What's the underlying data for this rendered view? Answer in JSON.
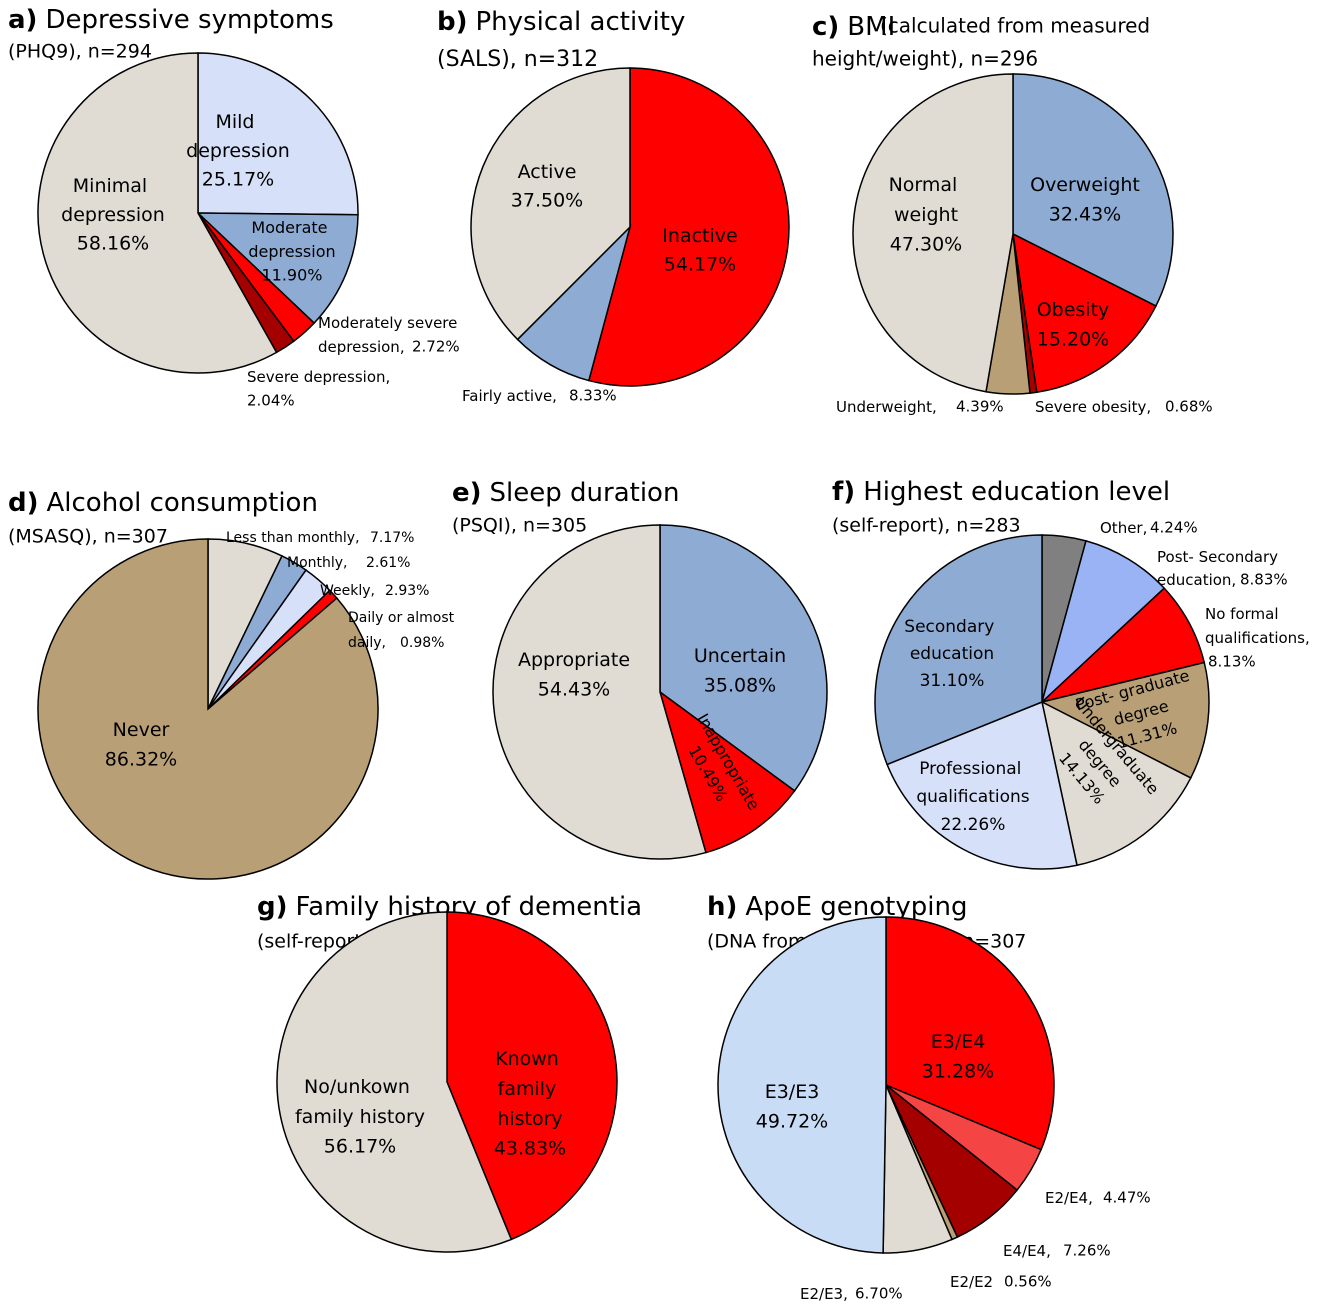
{
  "chart_data": [
    {
      "type": "pie",
      "panel": "a)",
      "title": "Depressive symptoms",
      "subtitle": "(PHQ9), n=294",
      "categories": [
        "Mild depression",
        "Moderate depression",
        "Moderately severe depression,",
        "Severe depression,",
        "Minimal depression"
      ],
      "values": [
        25.17,
        11.9,
        2.72,
        2.04,
        58.16
      ],
      "value_labels": [
        "25.17%",
        "11.90%",
        "2.72%",
        "2.04%",
        "58.16%"
      ],
      "colors": [
        "#d6e0f8",
        "#8eabd4",
        "#ff0000",
        "#a50000",
        "#e0dcd3"
      ]
    },
    {
      "type": "pie",
      "panel": "b)",
      "title": "Physical activity",
      "subtitle": "(SALS), n=312",
      "categories": [
        "Inactive",
        "Fairly active,",
        "Active"
      ],
      "values": [
        54.17,
        8.33,
        37.5
      ],
      "value_labels": [
        "54.17%",
        "8.33%",
        "37.50%"
      ],
      "colors": [
        "#ff0000",
        "#8eabd4",
        "#e0dcd3"
      ]
    },
    {
      "type": "pie",
      "panel": "c)",
      "title": "BMI",
      "note": "(calculated from measured",
      "subtitle": "height/weight), n=296",
      "categories": [
        "Overweight",
        "Obesity",
        "Severe obesity,",
        "Underweight,",
        "Normal weight"
      ],
      "values": [
        32.43,
        15.2,
        0.68,
        4.39,
        47.3
      ],
      "value_labels": [
        "32.43%",
        "15.20%",
        "0.68%",
        "4.39%",
        "47.30%"
      ],
      "colors": [
        "#8eabd4",
        "#ff0000",
        "#a50000",
        "#b89f75",
        "#e0dcd3"
      ]
    },
    {
      "type": "pie",
      "panel": "d)",
      "title": "Alcohol consumption",
      "subtitle": "(MSASQ), n=307",
      "categories": [
        "Less than monthly,",
        "Monthly,",
        "Weekly,",
        "Daily or almost daily,",
        "Never"
      ],
      "values": [
        7.17,
        2.61,
        2.93,
        0.98,
        86.32
      ],
      "value_labels": [
        "7.17%",
        "2.61%",
        "2.93%",
        "0.98%",
        "86.32%"
      ],
      "colors": [
        "#e0dcd3",
        "#8eabd4",
        "#d6e0f8",
        "#ff0000",
        "#b89f75"
      ]
    },
    {
      "type": "pie",
      "panel": "e)",
      "title": "Sleep duration",
      "subtitle": "(PSQI), n=305",
      "categories": [
        "Uncertain",
        "Inappropriate",
        "Appropriate"
      ],
      "values": [
        35.08,
        10.49,
        54.43
      ],
      "value_labels": [
        "35.08%",
        "10.49%",
        "54.43%"
      ],
      "colors": [
        "#8eabd4",
        "#ff0000",
        "#e0dcd3"
      ]
    },
    {
      "type": "pie",
      "panel": "f)",
      "title": "Highest education level",
      "subtitle": "(self-report), n=283",
      "categories": [
        "Other,",
        "Post- Secondary education,",
        "No formal qualifications,",
        "Post- graduate degree",
        "Undergraduate degree",
        "Professional qualifications",
        "Secondary education"
      ],
      "values": [
        4.24,
        8.83,
        8.13,
        11.31,
        14.13,
        22.26,
        31.1
      ],
      "value_labels": [
        "4.24%",
        "8.83%",
        "8.13%",
        "11.31%",
        "14.13%",
        "22.26%",
        "31.10%"
      ],
      "colors": [
        "#808080",
        "#99b3f5",
        "#ff0000",
        "#b89f75",
        "#e0dcd3",
        "#d6e0f8",
        "#8eabd4"
      ]
    },
    {
      "type": "pie",
      "panel": "g)",
      "title": "Family history of dementia",
      "subtitle": "(self-report), n=162",
      "categories": [
        "Known family history",
        "No/unkown family history"
      ],
      "values": [
        43.83,
        56.17
      ],
      "value_labels": [
        "43.83%",
        "56.17%"
      ],
      "colors": [
        "#ff0000",
        "#e0dcd3"
      ]
    },
    {
      "type": "pie",
      "panel": "h)",
      "title": "ApoE genotyping",
      "subtitle": "(DNA from saliva sample), n=307",
      "categories": [
        "E3/E4",
        "E2/E4,",
        "E4/E4,",
        "E2/E2",
        "E2/E3,",
        "E3/E3"
      ],
      "values": [
        31.28,
        4.47,
        7.26,
        0.56,
        6.7,
        49.72
      ],
      "value_labels": [
        "31.28%",
        "4.47%",
        "7.26%",
        "0.56%",
        "6.70%",
        "49.72%"
      ],
      "colors": [
        "#ff0000",
        "#f44444",
        "#a50000",
        "#b89f75",
        "#e0dcd3",
        "#c9dcf6"
      ]
    }
  ]
}
